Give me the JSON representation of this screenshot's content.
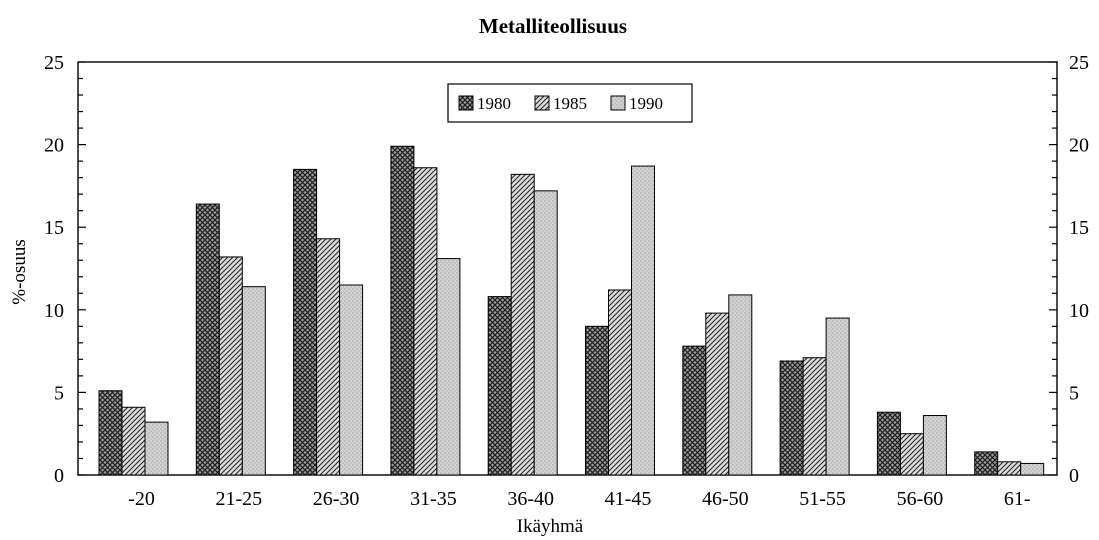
{
  "chart_data": {
    "type": "bar",
    "title": "Metalliteollisuus",
    "xlabel": "Ikäyhmä",
    "ylabel": "%-osuus",
    "ylim": [
      0,
      25
    ],
    "yticks": [
      0,
      5,
      10,
      15,
      20,
      25
    ],
    "grid": false,
    "legend_position": "top-center",
    "categories": [
      "-20",
      "21-25",
      "26-30",
      "31-35",
      "36-40",
      "41-45",
      "46-50",
      "51-55",
      "56-60",
      "61-"
    ],
    "series": [
      {
        "name": "1980",
        "pattern": "crosshatch",
        "fill": "#8a8a8a",
        "values": [
          5.1,
          16.4,
          18.5,
          19.9,
          10.8,
          9.0,
          7.8,
          6.9,
          3.8,
          1.4
        ]
      },
      {
        "name": "1985",
        "pattern": "diagonal",
        "fill": "#b4b4b4",
        "values": [
          4.1,
          13.2,
          14.3,
          18.6,
          18.2,
          11.2,
          9.8,
          7.1,
          2.5,
          0.8
        ]
      },
      {
        "name": "1990",
        "pattern": "stipple",
        "fill": "#d4d4d4",
        "values": [
          3.2,
          11.4,
          11.5,
          13.1,
          17.2,
          18.7,
          10.9,
          9.5,
          3.6,
          0.7
        ]
      }
    ]
  }
}
